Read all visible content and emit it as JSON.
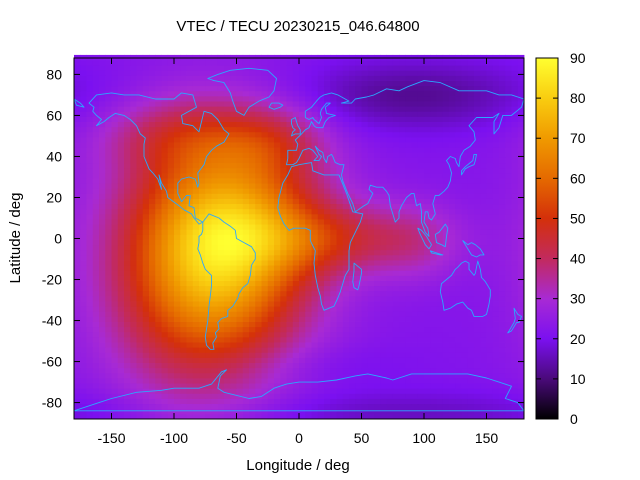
{
  "chart_data": {
    "type": "heatmap",
    "title": "VTEC / TECU 20230215_046.64800",
    "xlabel": "Longitude / deg",
    "ylabel": "Latitude / deg",
    "xlim": [
      -180,
      180
    ],
    "ylim": [
      -88,
      88
    ],
    "x_ticks": [
      -150,
      -100,
      -50,
      0,
      50,
      100,
      150
    ],
    "y_ticks": [
      80,
      60,
      40,
      20,
      0,
      -20,
      -40,
      -60,
      -80
    ],
    "colorbar": {
      "range": [
        0,
        90
      ],
      "ticks": [
        90,
        80,
        70,
        60,
        50,
        40,
        30,
        20,
        10,
        0
      ],
      "stops": [
        {
          "value": 0,
          "color": "#000000"
        },
        {
          "value": 10,
          "color": "#4a0a7a"
        },
        {
          "value": 20,
          "color": "#7b10f0"
        },
        {
          "value": 30,
          "color": "#a82ad4"
        },
        {
          "value": 40,
          "color": "#c22a5e"
        },
        {
          "value": 50,
          "color": "#d4300a"
        },
        {
          "value": 60,
          "color": "#e56a00"
        },
        {
          "value": 70,
          "color": "#f09a00"
        },
        {
          "value": 80,
          "color": "#f9cd10"
        },
        {
          "value": 90,
          "color": "#ffff30"
        }
      ]
    },
    "tec_field": {
      "background": 22,
      "components": [
        {
          "lon": -75,
          "lat": -12,
          "slon": 50,
          "slat": 40,
          "amp": 48
        },
        {
          "lon": -40,
          "lat": 8,
          "slon": 45,
          "slat": 30,
          "amp": 22
        },
        {
          "lon": 30,
          "lat": 0,
          "slon": 55,
          "slat": 12,
          "amp": 18
        },
        {
          "lon": -95,
          "lat": 50,
          "slon": 45,
          "slat": 12,
          "amp": 12
        },
        {
          "lon": -20,
          "lat": 48,
          "slon": 30,
          "slat": 12,
          "amp": 10
        },
        {
          "lon": 95,
          "lat": -2,
          "slon": 22,
          "slat": 14,
          "amp": 6
        },
        {
          "lon": 90,
          "lat": 70,
          "slon": 70,
          "slat": 12,
          "amp": -10
        },
        {
          "lon": 80,
          "lat": -85,
          "slon": 120,
          "slat": 8,
          "amp": -6
        },
        {
          "lon": 0,
          "lat": -62,
          "slon": 60,
          "slat": 8,
          "amp": -3
        }
      ]
    },
    "overlay": "coastlines"
  }
}
